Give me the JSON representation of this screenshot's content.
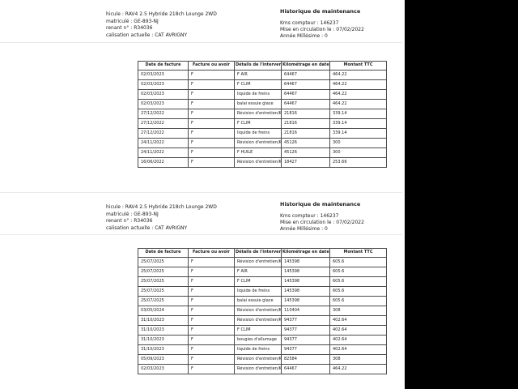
{
  "colors": {
    "right_band": "#000000",
    "divider": "#e9e9e9",
    "table_border": "#4a4a4a",
    "text": "#1c1c1c"
  },
  "sections": [
    {
      "vehicle_lines": [
        "hicule : RAV4 2.5 Hybride 218ch Lounge 2WD",
        "matriculé : GE-893-NJ",
        "renant n° : R34036",
        "calisation actuelle : CAT AVRIGNY"
      ],
      "history": {
        "title": "Historique de maintenance",
        "lines": [
          "Kms compteur : 146237",
          "Mise en circulation le : 07/02/2022",
          "Année Millésime : 0"
        ]
      },
      "table": {
        "headers": [
          "Date de facture",
          "Facture ou avoir",
          "Détails de l'intervention",
          "Kilométrage en date de la maintenance",
          "Montant TTC"
        ],
        "rows": [
          [
            "02/03/2023",
            "F",
            "F AIR",
            "64467",
            "464.22"
          ],
          [
            "02/03/2023",
            "F",
            "F CLIM",
            "64467",
            "464.22"
          ],
          [
            "02/03/2023",
            "F",
            "liquide de freins",
            "64467",
            "464.22"
          ],
          [
            "02/03/2023",
            "F",
            "balai essuie glace",
            "64467",
            "464.22"
          ],
          [
            "27/12/2022",
            "F",
            "Révision d'entretien/Km",
            "21816",
            "339.14"
          ],
          [
            "27/12/2022",
            "F",
            "F CLIM",
            "21816",
            "339.14"
          ],
          [
            "27/12/2022",
            "F",
            "liquide de freins",
            "21816",
            "339.14"
          ],
          [
            "24/11/2022",
            "F",
            "Révision d'entretien/Km",
            "45126",
            "300"
          ],
          [
            "24/11/2022",
            "F",
            "F HUILE",
            "45126",
            "300"
          ],
          [
            "16/06/2022",
            "F",
            "Révision d'entretien/Km",
            "18427",
            "253.66"
          ]
        ]
      }
    },
    {
      "vehicle_lines": [
        "hicule : RAV4 2.5 Hybride 218ch Lounge 2WD",
        "matriculé : GE-893-NJ",
        "renant n° : R34036",
        "calisation actuelle : CAT AVRIGNY"
      ],
      "history": {
        "title": "Historique de maintenance",
        "lines": [
          "Kms compteur : 146237",
          "Mise en circulation le : 07/02/2022",
          "Année Millésime : 0"
        ]
      },
      "table": {
        "headers": [
          "Date de facture",
          "Facture ou avoir",
          "Détails de l'intervention",
          "Kilométrage en date de la maintenance",
          "Montant TTC"
        ],
        "rows": [
          [
            "25/07/2025",
            "F",
            "Révision d'entretien/Km",
            "145398",
            "605.6"
          ],
          [
            "25/07/2025",
            "F",
            "F AIR",
            "145398",
            "605.6"
          ],
          [
            "25/07/2025",
            "F",
            "F CLIM",
            "145398",
            "605.6"
          ],
          [
            "25/07/2025",
            "F",
            "liquide de freins",
            "145398",
            "605.6"
          ],
          [
            "25/07/2025",
            "F",
            "balai essuie glace",
            "145398",
            "605.6"
          ],
          [
            "03/05/2024",
            "F",
            "Révision d'entretien/Km",
            "110404",
            "308"
          ],
          [
            "31/10/2023",
            "F",
            "Révision d'entretien/Km",
            "94377",
            "402.64"
          ],
          [
            "31/10/2023",
            "F",
            "F CLIM",
            "94377",
            "402.64"
          ],
          [
            "31/10/2023",
            "F",
            "bougies d'allumage",
            "94377",
            "402.64"
          ],
          [
            "31/10/2023",
            "F",
            "liquide de freins",
            "94377",
            "402.64"
          ],
          [
            "05/09/2023",
            "F",
            "Révision d'entretien/Km",
            "82584",
            "308"
          ],
          [
            "02/03/2023",
            "F",
            "Révision d'entretien/Km",
            "64467",
            "464.22"
          ]
        ]
      }
    }
  ]
}
